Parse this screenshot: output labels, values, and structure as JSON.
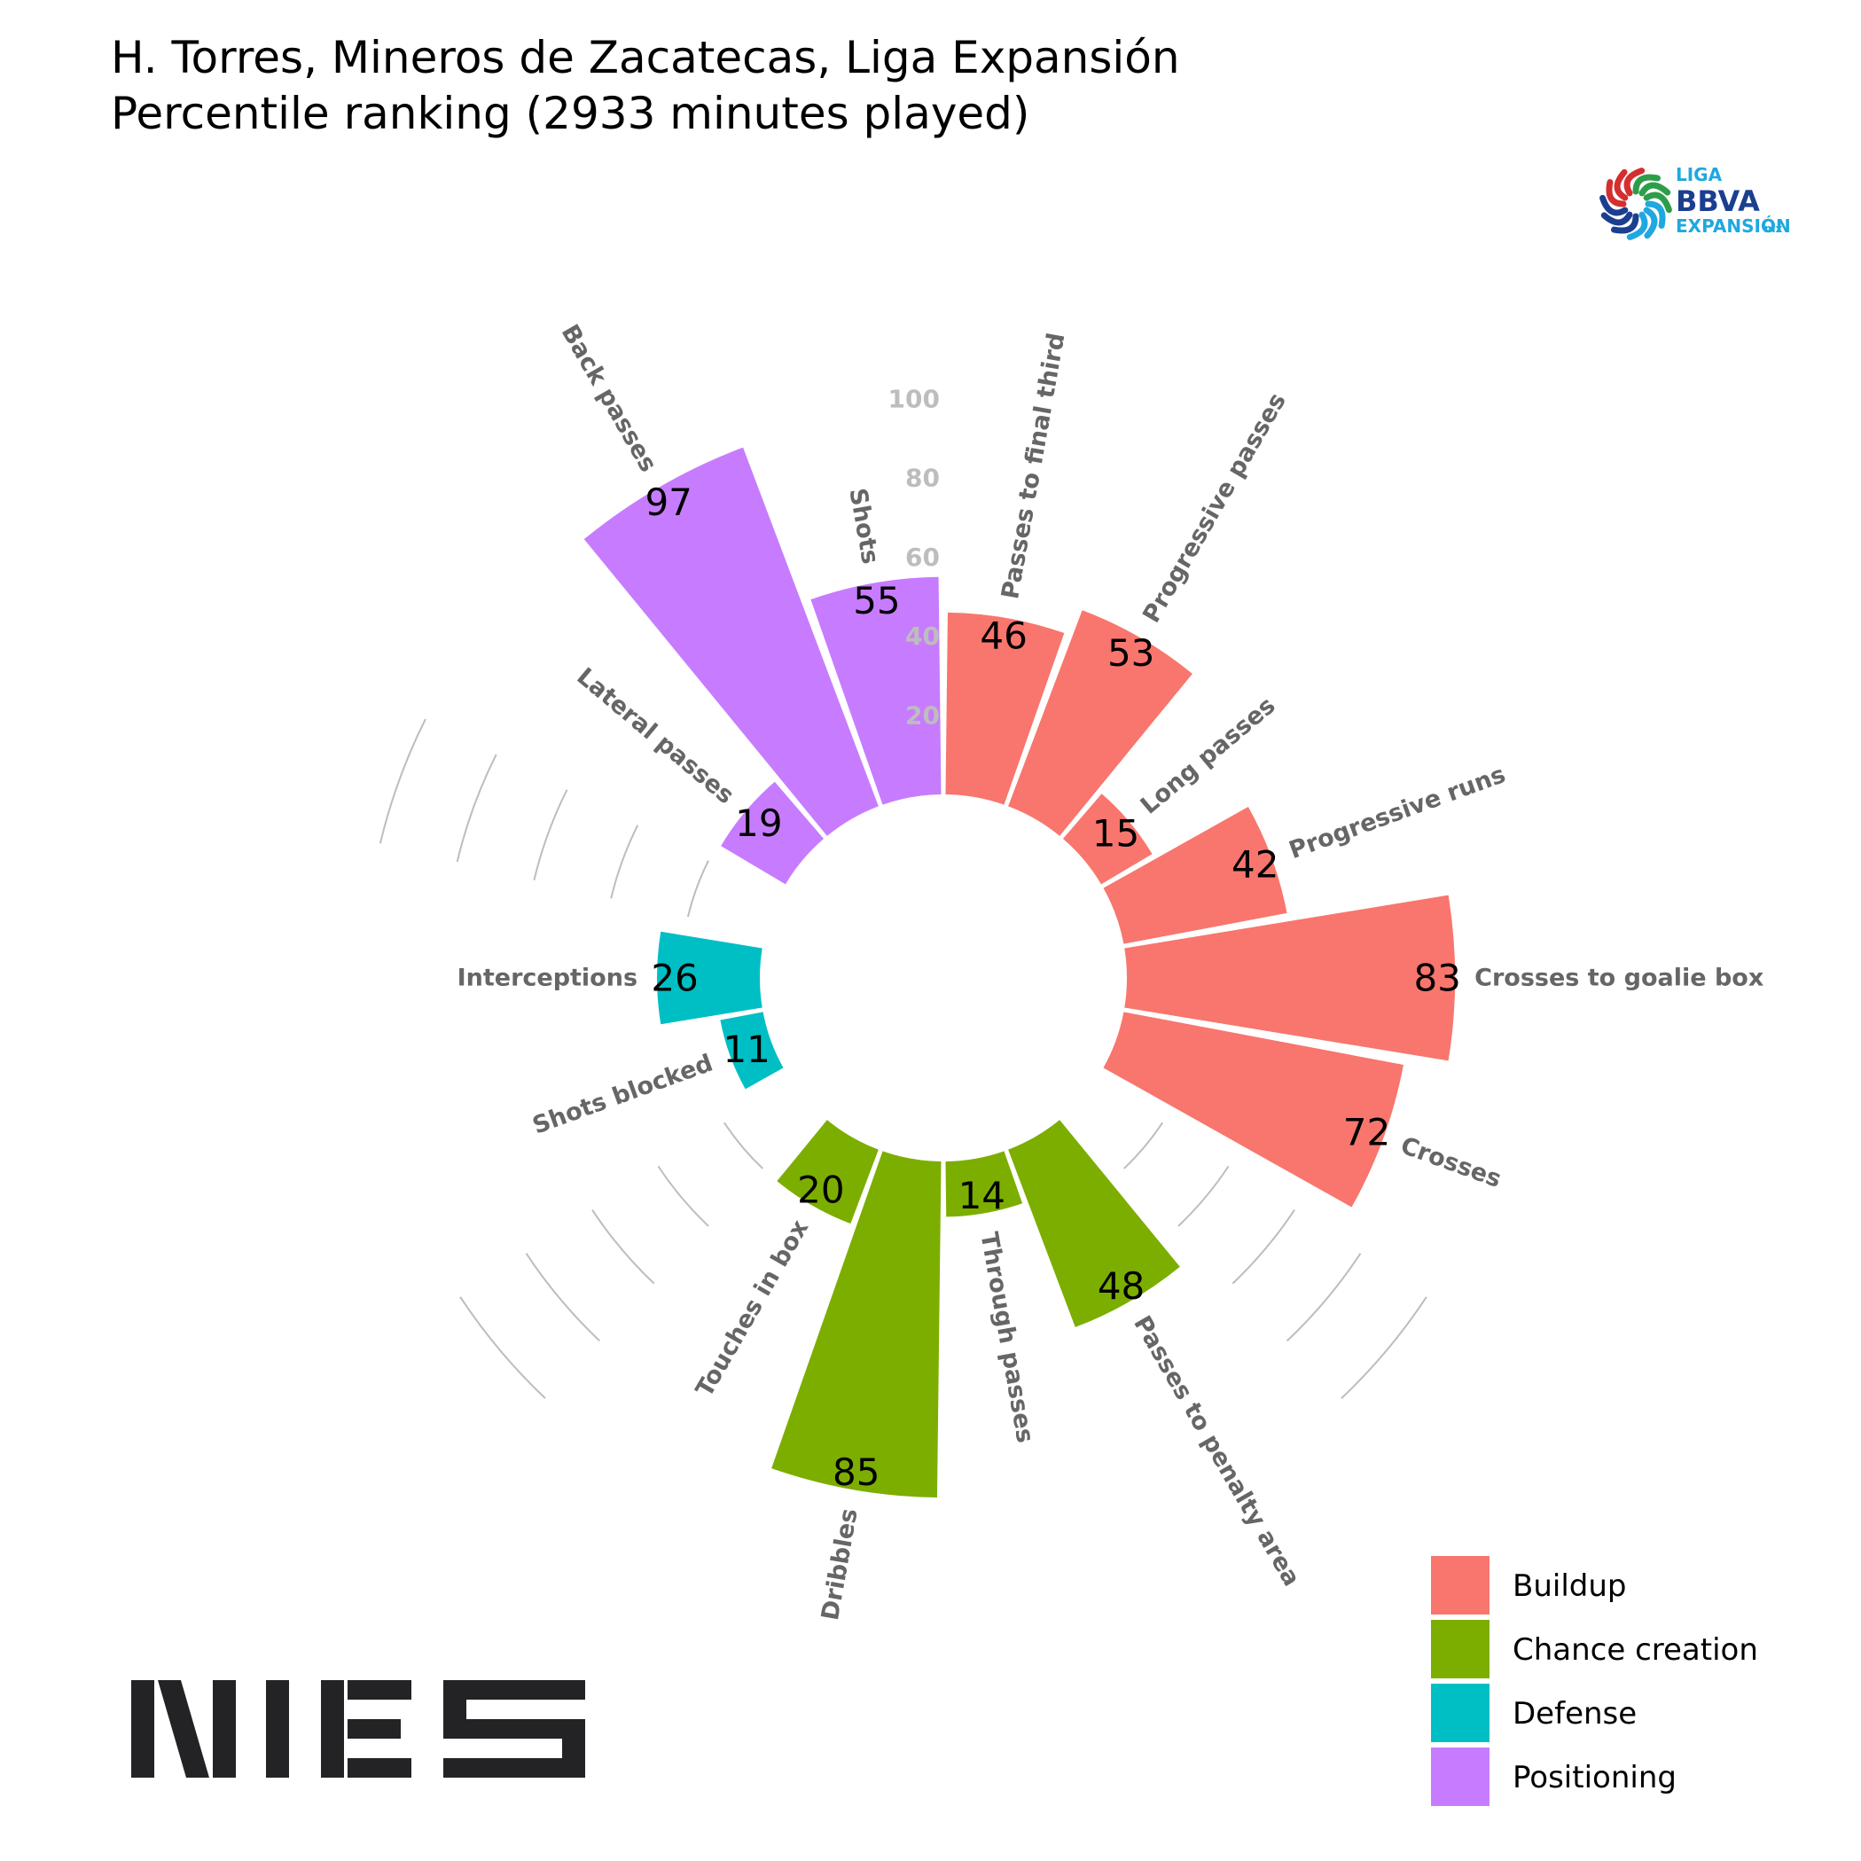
{
  "title": "H. Torres, Mineros de Zacatecas, Liga Expansión",
  "subtitle": "Percentile ranking (2933 minutes played)",
  "league_logo": {
    "line1": "LIGA",
    "line2": "BBVA",
    "line3": "EXPANSIÓN",
    "suffix": "mx",
    "colors": [
      "#1fa8e0",
      "#1b3f8f",
      "#d32f2f",
      "#2e9d4a"
    ]
  },
  "brand_logo": {
    "text": "NIES",
    "color": "#232326"
  },
  "legend": [
    {
      "label": "Buildup",
      "color": "#F8766D"
    },
    {
      "label": "Chance creation",
      "color": "#7CAE00"
    },
    {
      "label": "Defense",
      "color": "#00BFC4"
    },
    {
      "label": "Positioning",
      "color": "#C77CFF"
    }
  ],
  "chart_data": {
    "type": "polar-bar",
    "title": "H. Torres, Mineros de Zacatecas, Liga Expansión",
    "subtitle": "Percentile ranking (2933 minutes played)",
    "ylim": [
      0,
      100
    ],
    "radial_ticks": [
      "20",
      "40",
      "60",
      "80",
      "100"
    ],
    "bars": [
      {
        "label": "Passes to final third",
        "value": 46,
        "group": "Buildup"
      },
      {
        "label": "Progressive passes",
        "value": 53,
        "group": "Buildup"
      },
      {
        "label": "Long passes",
        "value": 15,
        "group": "Buildup"
      },
      {
        "label": "Progressive runs",
        "value": 42,
        "group": "Buildup"
      },
      {
        "label": "Crosses to goalie box",
        "value": 83,
        "group": "Buildup"
      },
      {
        "label": "Crosses",
        "value": 72,
        "group": "Buildup"
      },
      {
        "label": "",
        "value": null,
        "group": ""
      },
      {
        "label": "Passes to penalty area",
        "value": 48,
        "group": "Chance creation"
      },
      {
        "label": "Through passes",
        "value": 14,
        "group": "Chance creation"
      },
      {
        "label": "Dribbles",
        "value": 85,
        "group": "Chance creation"
      },
      {
        "label": "Touches in box",
        "value": 20,
        "group": "Chance creation"
      },
      {
        "label": "",
        "value": null,
        "group": ""
      },
      {
        "label": "Shots blocked",
        "value": 11,
        "group": "Defense"
      },
      {
        "label": "Interceptions",
        "value": 26,
        "group": "Defense"
      },
      {
        "label": "",
        "value": null,
        "group": ""
      },
      {
        "label": "Lateral passes",
        "value": 19,
        "group": "Positioning"
      },
      {
        "label": "Back passes",
        "value": 97,
        "group": "Positioning"
      },
      {
        "label": "Shots",
        "value": 55,
        "group": "Positioning"
      }
    ]
  }
}
